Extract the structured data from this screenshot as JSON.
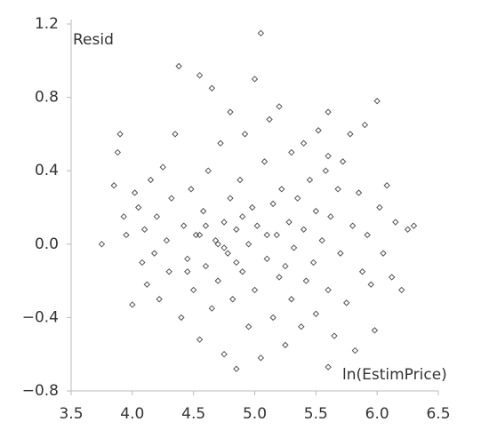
{
  "chart_data": {
    "type": "scatter",
    "y_axis_label": "Resid",
    "x_axis_label": "ln(EstimPrice)",
    "color": "#555555",
    "xlim": [
      3.5,
      6.5
    ],
    "ylim": [
      -0.8,
      1.2
    ],
    "xticks": [
      3.5,
      {
        "value": 4.0,
        "label": "4.0"
      },
      4.5,
      {
        "value": 5.0,
        "label": "5.0"
      },
      5.5,
      {
        "value": 6.0,
        "label": "6.0"
      },
      6.5
    ],
    "yticks": [
      {
        "value": -0.8,
        "label": "−0.8"
      },
      {
        "value": -0.4,
        "label": "−0.4"
      },
      {
        "value": 0.0,
        "label": "0.0"
      },
      0.4,
      0.8,
      1.2
    ],
    "x": [
      3.75,
      3.85,
      3.88,
      3.9,
      3.93,
      3.95,
      4.0,
      4.02,
      4.05,
      4.08,
      4.1,
      4.12,
      4.15,
      4.18,
      4.2,
      4.22,
      4.25,
      4.28,
      4.3,
      4.32,
      4.35,
      4.38,
      4.4,
      4.42,
      4.45,
      4.48,
      4.5,
      4.52,
      4.55,
      4.55,
      4.58,
      4.6,
      4.62,
      4.65,
      4.65,
      4.68,
      4.7,
      4.72,
      4.75,
      4.75,
      4.78,
      4.8,
      4.8,
      4.82,
      4.85,
      4.85,
      4.88,
      4.9,
      4.92,
      4.95,
      4.95,
      4.98,
      5.0,
      5.0,
      5.02,
      5.05,
      5.05,
      5.08,
      5.1,
      5.12,
      5.15,
      5.15,
      5.18,
      5.2,
      5.2,
      5.22,
      5.25,
      5.28,
      5.3,
      5.3,
      5.32,
      5.35,
      5.38,
      5.4,
      5.4,
      5.42,
      5.45,
      5.48,
      5.5,
      5.5,
      5.52,
      5.55,
      5.58,
      5.6,
      5.6,
      5.62,
      5.65,
      5.68,
      5.7,
      5.72,
      5.75,
      5.78,
      5.8,
      5.82,
      5.85,
      5.88,
      5.9,
      5.92,
      5.95,
      5.98,
      6.0,
      6.02,
      6.05,
      6.08,
      6.12,
      6.15,
      6.2,
      6.25,
      6.3,
      4.45,
      4.6,
      4.7,
      4.85,
      4.9,
      5.1,
      5.25,
      4.55,
      4.75,
      5.6,
      5.6
    ],
    "y": [
      0.0,
      0.32,
      0.5,
      0.6,
      0.15,
      0.05,
      -0.33,
      0.28,
      0.2,
      -0.1,
      0.08,
      -0.22,
      0.35,
      -0.05,
      0.15,
      -0.3,
      0.42,
      0.02,
      -0.15,
      0.25,
      0.6,
      0.97,
      -0.4,
      0.1,
      -0.08,
      0.3,
      -0.25,
      0.05,
      0.92,
      -0.52,
      0.18,
      -0.12,
      0.4,
      0.85,
      -0.35,
      0.02,
      -0.2,
      0.55,
      0.12,
      -0.6,
      -0.05,
      0.72,
      0.25,
      -0.3,
      0.08,
      -0.68,
      0.35,
      -0.15,
      0.6,
      0.0,
      -0.45,
      0.2,
      0.9,
      -0.25,
      0.1,
      1.15,
      -0.62,
      0.45,
      -0.08,
      0.68,
      0.22,
      -0.4,
      0.05,
      0.75,
      -0.18,
      0.3,
      -0.55,
      0.12,
      0.5,
      -0.3,
      -0.02,
      0.25,
      -0.45,
      0.55,
      0.08,
      -0.2,
      0.35,
      -0.1,
      0.18,
      -0.38,
      0.62,
      0.02,
      0.4,
      -0.25,
      0.72,
      0.15,
      -0.5,
      0.3,
      -0.05,
      0.45,
      -0.32,
      0.6,
      0.1,
      -0.58,
      0.28,
      -0.15,
      0.65,
      0.05,
      -0.22,
      -0.47,
      0.78,
      0.2,
      -0.05,
      0.32,
      -0.18,
      0.12,
      -0.25,
      0.08,
      0.1,
      -0.15,
      0.1,
      0.0,
      -0.1,
      0.15,
      0.05,
      -0.12,
      0.05,
      -0.02,
      0.48,
      -0.67
    ]
  }
}
